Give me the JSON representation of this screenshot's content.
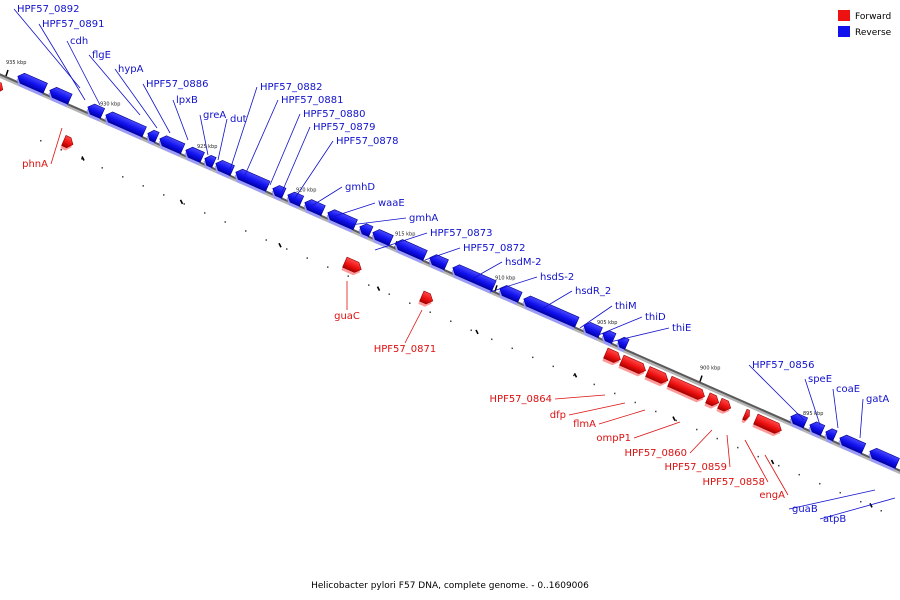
{
  "caption": "Helicobacter pylori F57 DNA, complete genome. - 0..1609006",
  "legend": [
    {
      "label": "Forward",
      "color": "#ee1111"
    },
    {
      "label": "Reverse",
      "color": "#1111ee"
    }
  ],
  "ticks": [
    "935 kbp",
    "930 kbp",
    "925 kbp",
    "920 kbp",
    "915 kbp",
    "910 kbp",
    "905 kbp",
    "900 kbp",
    "895 kbp"
  ],
  "genes": [
    {
      "name": "phnA",
      "strand": "forward"
    },
    {
      "name": "HPF57_0892",
      "strand": "reverse"
    },
    {
      "name": "HPF57_0891",
      "strand": "reverse"
    },
    {
      "name": "cdh",
      "strand": "reverse"
    },
    {
      "name": "flgE",
      "strand": "reverse"
    },
    {
      "name": "hypA",
      "strand": "reverse"
    },
    {
      "name": "HPF57_0886",
      "strand": "reverse"
    },
    {
      "name": "lpxB",
      "strand": "reverse"
    },
    {
      "name": "greA",
      "strand": "reverse"
    },
    {
      "name": "dut",
      "strand": "reverse"
    },
    {
      "name": "HPF57_0882",
      "strand": "reverse"
    },
    {
      "name": "HPF57_0881",
      "strand": "reverse"
    },
    {
      "name": "HPF57_0880",
      "strand": "reverse"
    },
    {
      "name": "HPF57_0879",
      "strand": "reverse"
    },
    {
      "name": "HPF57_0878",
      "strand": "reverse"
    },
    {
      "name": "gmhD",
      "strand": "reverse"
    },
    {
      "name": "waaE",
      "strand": "reverse"
    },
    {
      "name": "gmhA",
      "strand": "reverse"
    },
    {
      "name": "guaC",
      "strand": "forward"
    },
    {
      "name": "HPF57_0873",
      "strand": "reverse"
    },
    {
      "name": "HPF57_0872",
      "strand": "reverse"
    },
    {
      "name": "HPF57_0871",
      "strand": "forward"
    },
    {
      "name": "hsdM-2",
      "strand": "reverse"
    },
    {
      "name": "hsdS-2",
      "strand": "reverse"
    },
    {
      "name": "hsdR_2",
      "strand": "reverse"
    },
    {
      "name": "thiM",
      "strand": "reverse"
    },
    {
      "name": "thiD",
      "strand": "reverse"
    },
    {
      "name": "thiE",
      "strand": "reverse"
    },
    {
      "name": "HPF57_0864",
      "strand": "forward"
    },
    {
      "name": "dfp",
      "strand": "forward"
    },
    {
      "name": "flmA",
      "strand": "forward"
    },
    {
      "name": "ompP1",
      "strand": "forward"
    },
    {
      "name": "HPF57_0860",
      "strand": "forward"
    },
    {
      "name": "HPF57_0859",
      "strand": "forward"
    },
    {
      "name": "HPF57_0858",
      "strand": "forward"
    },
    {
      "name": "engA",
      "strand": "forward"
    },
    {
      "name": "HPF57_0856",
      "strand": "reverse"
    },
    {
      "name": "speE",
      "strand": "reverse"
    },
    {
      "name": "coaE",
      "strand": "reverse"
    },
    {
      "name": "gatA",
      "strand": "reverse"
    },
    {
      "name": "guaB",
      "strand": "reverse"
    },
    {
      "name": "atpB",
      "strand": "reverse"
    }
  ]
}
